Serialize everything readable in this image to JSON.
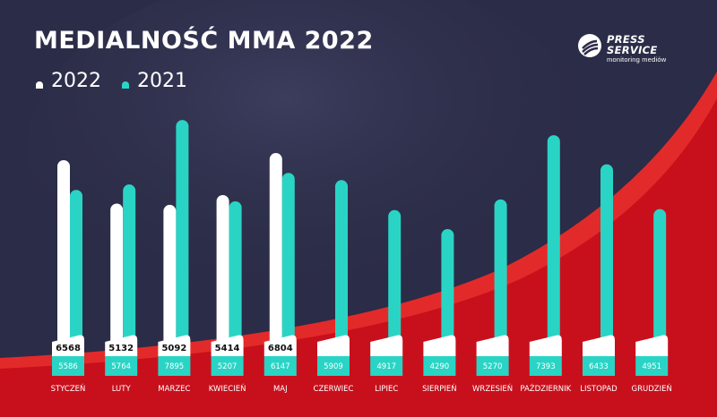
{
  "header": {
    "title": "MEDIALNOŚĆ MMA 2022",
    "legend_2022": "2022",
    "legend_2021": "2021"
  },
  "logo": {
    "word1": "PRESS",
    "word2": "SERVICE",
    "subtitle": "monitoring mediów"
  },
  "colors": {
    "background": "#2b2c47",
    "red": "#d7141f",
    "bar_2022": "#ffffff",
    "bar_2021": "#2ad4c5"
  },
  "chart_data": {
    "type": "bar",
    "categories": [
      "STYCZEŃ",
      "LUTY",
      "MARZEC",
      "KWIECIEŃ",
      "MAJ",
      "CZERWIEC",
      "LIPIEC",
      "SIERPIEŃ",
      "WRZESIEŃ",
      "PAŹDZIERNIK",
      "LISTOPAD",
      "GRUDZIEŃ"
    ],
    "series": [
      {
        "name": "2022",
        "values": [
          6568,
          5132,
          5092,
          5414,
          6804,
          null,
          null,
          null,
          null,
          null,
          null,
          null
        ]
      },
      {
        "name": "2021",
        "values": [
          5586,
          5764,
          7895,
          5207,
          6147,
          5909,
          4917,
          4290,
          5270,
          7393,
          6433,
          4951
        ]
      }
    ],
    "title": "MEDIALNOŚĆ MMA 2022",
    "legend_position": "top-left",
    "grid": false
  }
}
